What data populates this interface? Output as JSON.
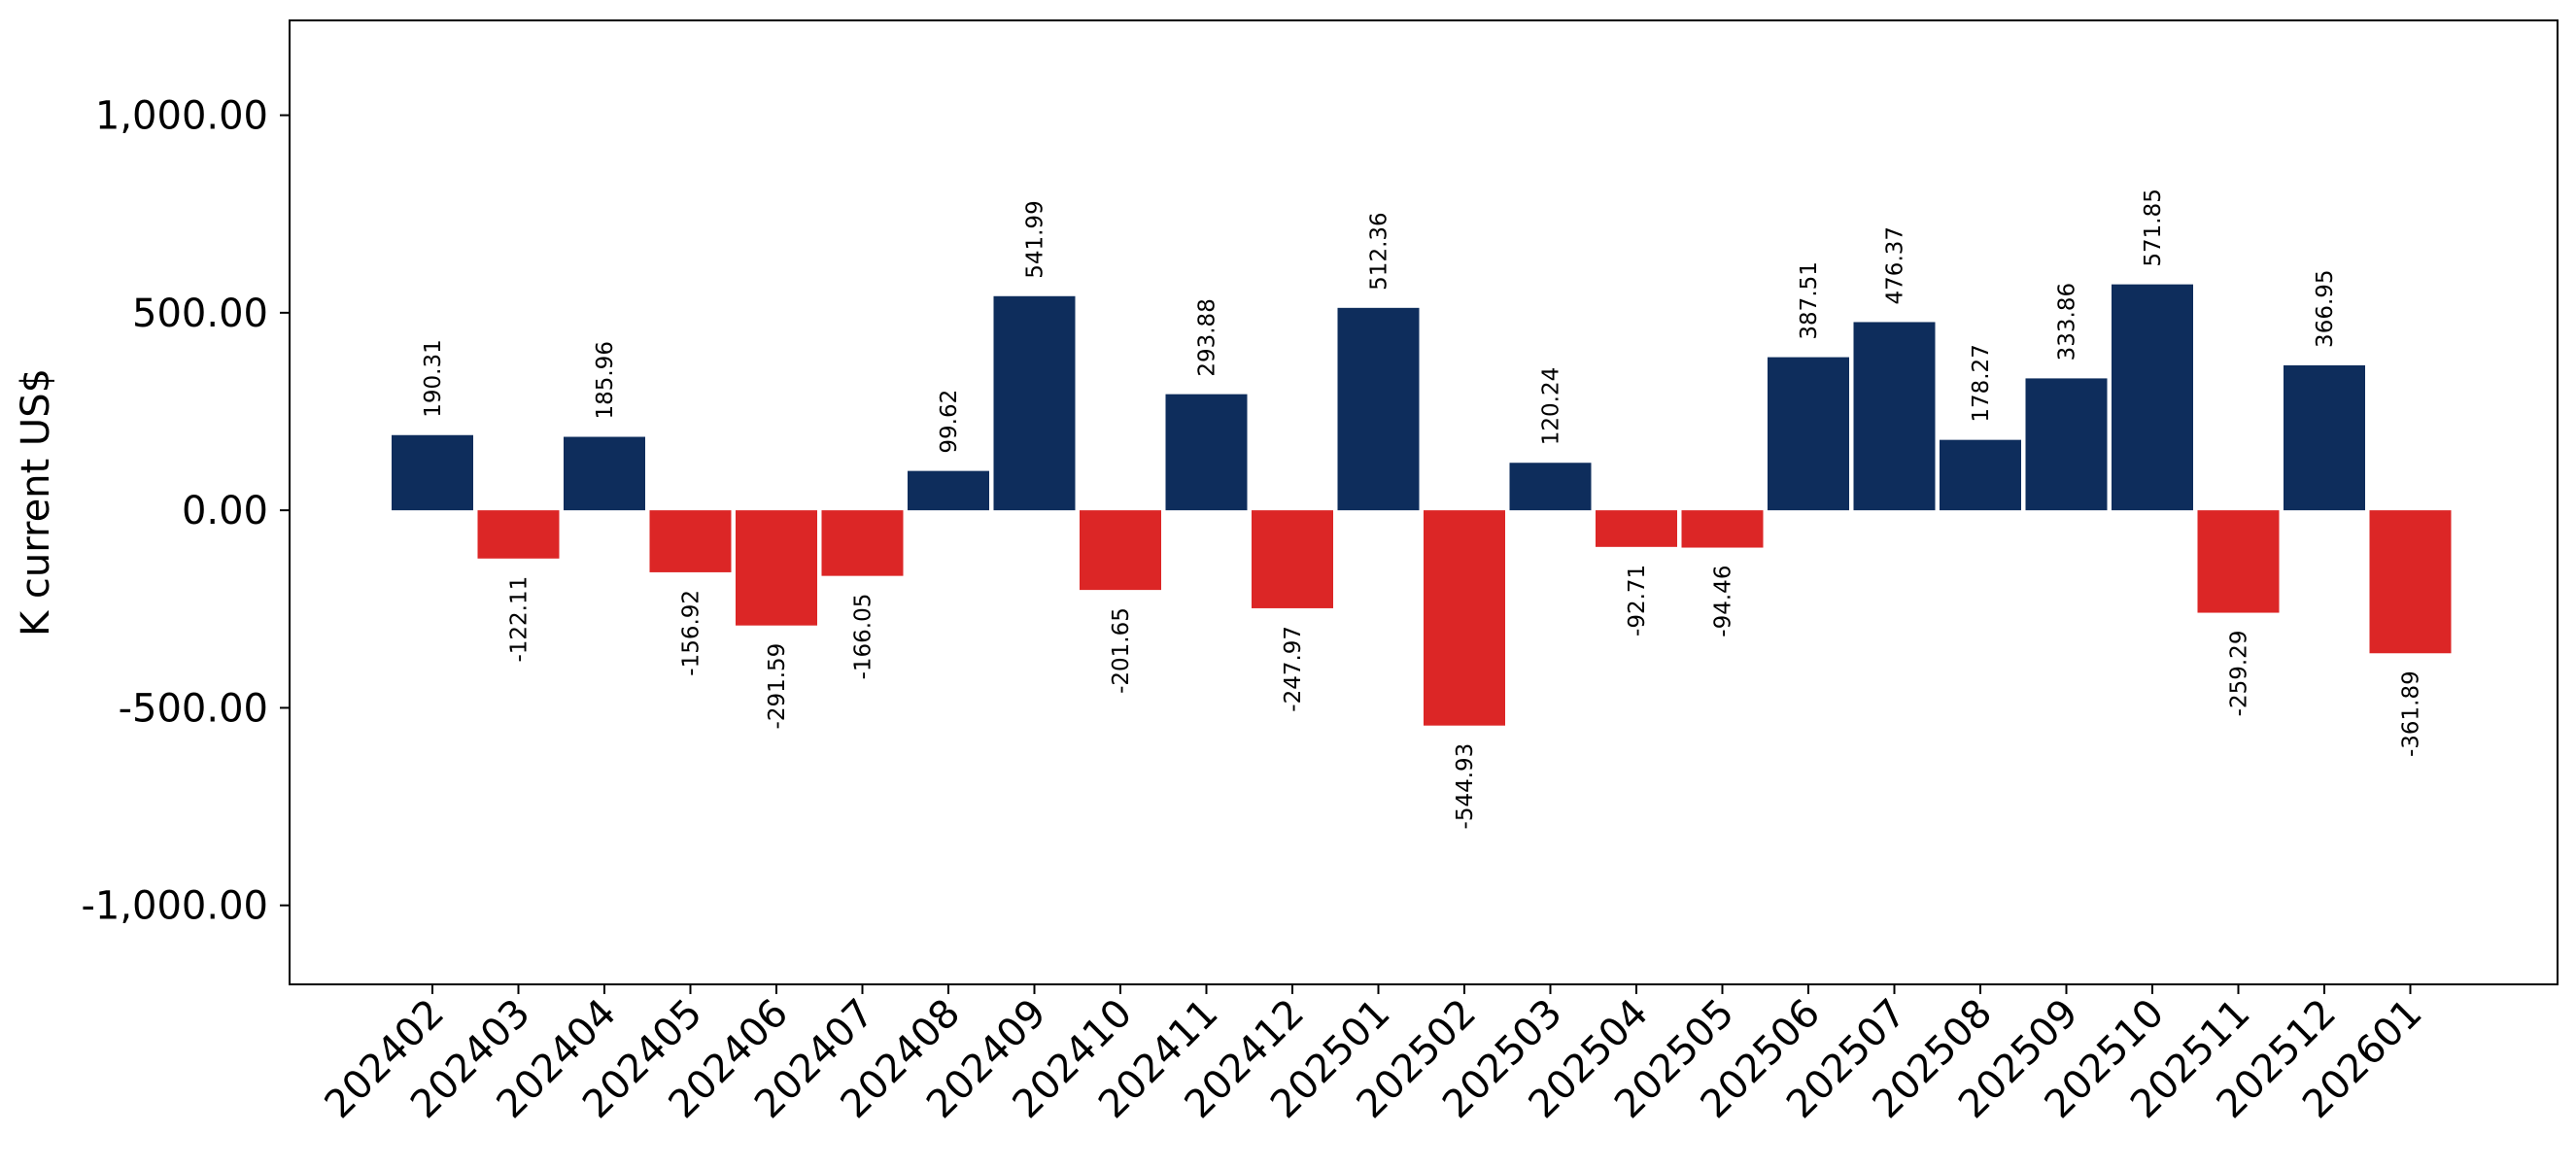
{
  "chart_data": {
    "type": "bar",
    "title": "",
    "xlabel": "",
    "ylabel": "K current US$",
    "ylim": [
      -1200,
      1240
    ],
    "yticks": [
      -1000,
      -500,
      0,
      500,
      1000
    ],
    "ytick_labels": [
      "-1,000.00",
      "-500.00",
      "0.00",
      "500.00",
      "1,000.00"
    ],
    "grid": false,
    "legend": "none",
    "colors": {
      "positive": "#0e2d5c",
      "negative": "#dc2626",
      "axis": "#000000"
    },
    "categories": [
      "202402",
      "202403",
      "202404",
      "202405",
      "202406",
      "202407",
      "202408",
      "202409",
      "202410",
      "202411",
      "202412",
      "202501",
      "202502",
      "202503",
      "202504",
      "202505",
      "202506",
      "202507",
      "202508",
      "202509",
      "202510",
      "202511",
      "202512",
      "202601"
    ],
    "values": [
      190.31,
      -122.11,
      185.96,
      -156.92,
      -291.59,
      -166.05,
      99.62,
      541.99,
      -201.65,
      293.88,
      -247.97,
      512.36,
      -544.93,
      120.24,
      -92.71,
      -94.46,
      387.51,
      476.37,
      178.27,
      333.86,
      571.85,
      -259.29,
      366.95,
      -361.89
    ],
    "value_labels": [
      "190.31",
      "-122.11",
      "185.96",
      "-156.92",
      "-291.59",
      "-166.05",
      "99.62",
      "541.99",
      "-201.65",
      "293.88",
      "-247.97",
      "512.36",
      "-544.93",
      "120.24",
      "-92.71",
      "-94.46",
      "387.51",
      "476.37",
      "178.27",
      "333.86",
      "571.85",
      "-259.29",
      "366.95",
      "-361.89"
    ]
  }
}
